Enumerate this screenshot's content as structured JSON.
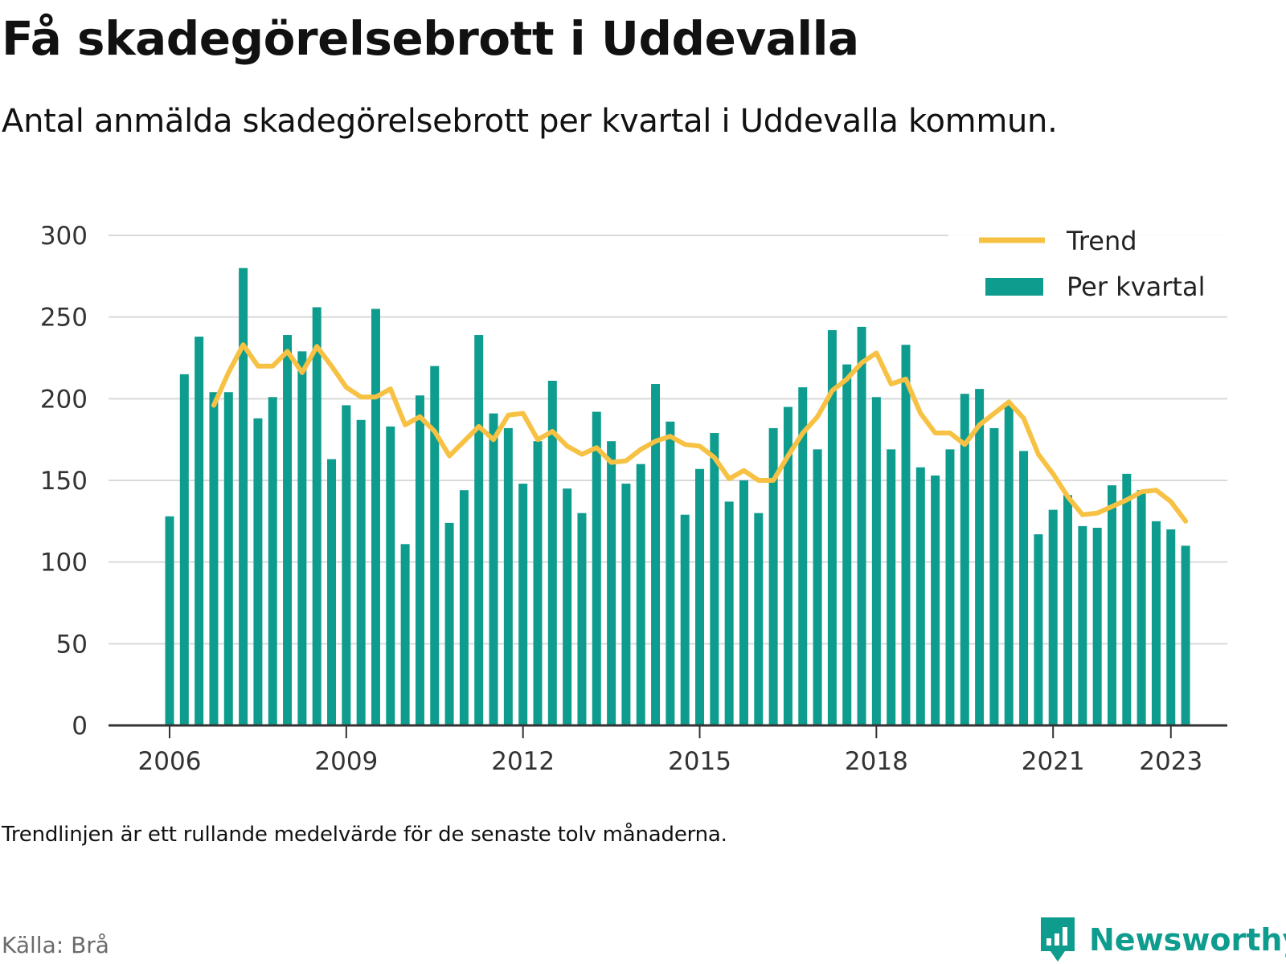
{
  "title": "Få skadegörelsebrott i Uddevalla",
  "subtitle": "Antal anmälda skadegörelsebrott per kvartal i Uddevalla kommun.",
  "footnote": "Trendlinjen är ett rullande medelvärde för de senaste tolv månaderna.",
  "source": "Källa: Brå",
  "brand": {
    "name": "Newsworthy",
    "icon": "newsworthy-logo-icon"
  },
  "colors": {
    "bars": "#0e9c8e",
    "trend": "#f7c143",
    "grid": "#d9d9d9",
    "axis": "#333333"
  },
  "chart_data": {
    "type": "bar",
    "grid": true,
    "legend_position": "top-right",
    "ylim": [
      0,
      300
    ],
    "yticks": [
      "0",
      "50",
      "100",
      "150",
      "200",
      "250",
      "300"
    ],
    "xticks": [
      "2006",
      "2009",
      "2012",
      "2015",
      "2018",
      "2021",
      "2023"
    ],
    "categories": [
      "2006 Q1",
      "2006 Q2",
      "2006 Q3",
      "2006 Q4",
      "2007 Q1",
      "2007 Q2",
      "2007 Q3",
      "2007 Q4",
      "2008 Q1",
      "2008 Q2",
      "2008 Q3",
      "2008 Q4",
      "2009 Q1",
      "2009 Q2",
      "2009 Q3",
      "2009 Q4",
      "2010 Q1",
      "2010 Q2",
      "2010 Q3",
      "2010 Q4",
      "2011 Q1",
      "2011 Q2",
      "2011 Q3",
      "2011 Q4",
      "2012 Q1",
      "2012 Q2",
      "2012 Q3",
      "2012 Q4",
      "2013 Q1",
      "2013 Q2",
      "2013 Q3",
      "2013 Q4",
      "2014 Q1",
      "2014 Q2",
      "2014 Q3",
      "2014 Q4",
      "2015 Q1",
      "2015 Q2",
      "2015 Q3",
      "2015 Q4",
      "2016 Q1",
      "2016 Q2",
      "2016 Q3",
      "2016 Q4",
      "2017 Q1",
      "2017 Q2",
      "2017 Q3",
      "2017 Q4",
      "2018 Q1",
      "2018 Q2",
      "2018 Q3",
      "2018 Q4",
      "2019 Q1",
      "2019 Q2",
      "2019 Q3",
      "2019 Q4",
      "2020 Q1",
      "2020 Q2",
      "2020 Q3",
      "2020 Q4",
      "2021 Q1",
      "2021 Q2",
      "2021 Q3",
      "2021 Q4",
      "2022 Q1",
      "2022 Q2",
      "2022 Q3",
      "2022 Q4",
      "2023 Q1",
      "2023 Q2"
    ],
    "series": [
      {
        "name": "Per kvartal",
        "type": "bar",
        "values": [
          128,
          215,
          238,
          204,
          204,
          280,
          188,
          201,
          239,
          229,
          256,
          163,
          196,
          187,
          255,
          183,
          111,
          202,
          220,
          124,
          144,
          239,
          191,
          182,
          148,
          174,
          211,
          145,
          130,
          192,
          174,
          148,
          160,
          209,
          186,
          129,
          157,
          179,
          137,
          150,
          130,
          182,
          195,
          207,
          169,
          242,
          221,
          244,
          201,
          169,
          233,
          158,
          153,
          169,
          203,
          206,
          182,
          196,
          168,
          117,
          132,
          141,
          122,
          121,
          147,
          154,
          144,
          125,
          120,
          110
        ]
      },
      {
        "name": "Trend",
        "type": "line",
        "values": [
          null,
          null,
          null,
          196,
          216,
          233,
          220,
          220,
          229,
          216,
          232,
          220,
          207,
          201,
          201,
          206,
          184,
          189,
          180,
          165,
          174,
          183,
          175,
          190,
          191,
          175,
          180,
          171,
          166,
          170,
          161,
          162,
          169,
          174,
          177,
          172,
          171,
          164,
          151,
          156,
          150,
          150,
          165,
          179,
          189,
          205,
          212,
          222,
          228,
          209,
          212,
          191,
          179,
          179,
          172,
          184,
          191,
          198,
          188,
          166,
          154,
          140,
          129,
          130,
          134,
          138,
          143,
          144,
          137,
          125
        ]
      }
    ]
  }
}
